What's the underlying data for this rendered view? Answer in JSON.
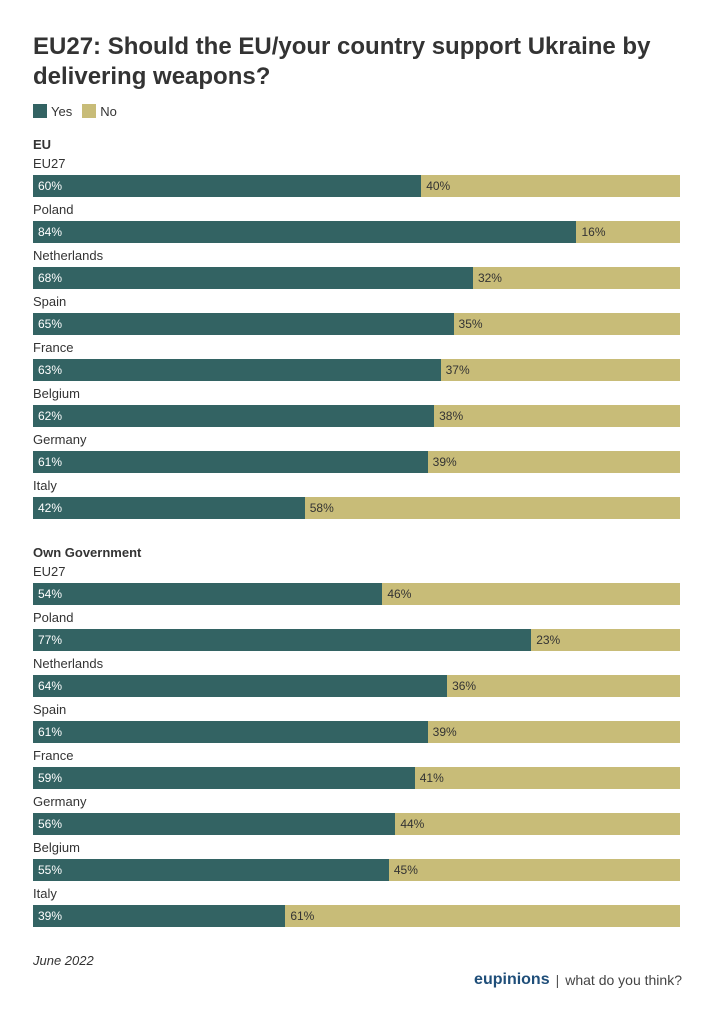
{
  "colors": {
    "yes": "#336363",
    "no": "#c8bc78"
  },
  "chart_data": {
    "type": "bar",
    "orientation": "horizontal",
    "stacked": true,
    "title": "EU27: Should the EU/your country support Ukraine by delivering weapons?",
    "legend": [
      {
        "name": "Yes",
        "color": "#336363"
      },
      {
        "name": "No",
        "color": "#c8bc78"
      }
    ],
    "legend_placement": "top-left",
    "groups": [
      {
        "name": "EU",
        "categories": [
          "EU27",
          "Poland",
          "Netherlands",
          "Spain",
          "France",
          "Belgium",
          "Germany",
          "Italy"
        ],
        "series": [
          {
            "name": "Yes",
            "values": [
              60,
              84,
              68,
              65,
              63,
              62,
              61,
              42
            ]
          },
          {
            "name": "No",
            "values": [
              40,
              16,
              32,
              35,
              37,
              38,
              39,
              58
            ]
          }
        ]
      },
      {
        "name": "Own Government",
        "categories": [
          "EU27",
          "Poland",
          "Netherlands",
          "Spain",
          "France",
          "Germany",
          "Belgium",
          "Italy"
        ],
        "series": [
          {
            "name": "Yes",
            "values": [
              54,
              77,
              64,
              61,
              59,
              56,
              55,
              39
            ]
          },
          {
            "name": "No",
            "values": [
              46,
              23,
              36,
              39,
              41,
              44,
              45,
              61
            ]
          }
        ]
      }
    ],
    "unit": "%"
  },
  "footer": {
    "note": "June 2022",
    "brand": "eupinions",
    "separator": "|",
    "tagline": "what do you think?"
  }
}
